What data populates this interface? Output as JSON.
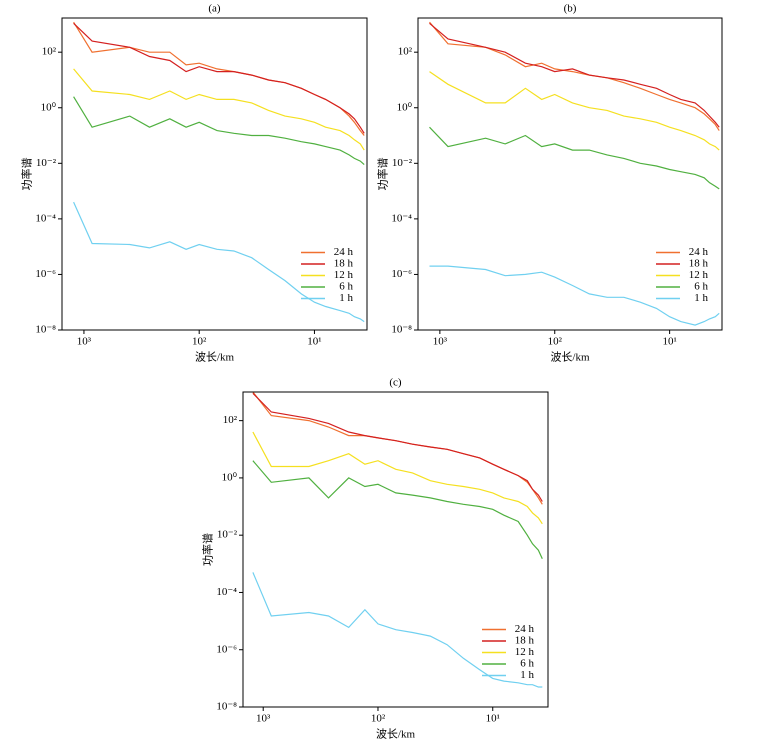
{
  "chart_data": [
    {
      "type": "line",
      "title": "(a)",
      "x_label": "波长/km",
      "y_label": "功率谱",
      "xscale": "log",
      "yscale": "log",
      "legend": "lower right",
      "x": [
        1230,
        850,
        400,
        270,
        180,
        130,
        100,
        70,
        50,
        35,
        25,
        18,
        13,
        10,
        8,
        6,
        5,
        4.5,
        4,
        3.7
      ],
      "xlim": [
        1550,
        3.5
      ],
      "ylim": [
        1e-08,
        1700
      ],
      "xticks": [
        {
          "value": 1000,
          "label": "10³"
        },
        {
          "value": 100,
          "label": "10²"
        },
        {
          "value": 10,
          "label": "10¹"
        }
      ],
      "yticks": [
        {
          "value": 1e-08,
          "label": "10⁻⁸"
        },
        {
          "value": 1e-06,
          "label": "10⁻⁶"
        },
        {
          "value": 0.0001,
          "label": "10⁻⁴"
        },
        {
          "value": 0.01,
          "label": "10⁻²"
        },
        {
          "value": 1,
          "label": "10⁰"
        },
        {
          "value": 100,
          "label": "10²"
        }
      ],
      "series": [
        {
          "name": "24 h",
          "color": "#f07030",
          "values": [
            1200,
            100,
            150,
            100,
            100,
            35,
            40,
            25,
            20,
            15,
            10,
            8,
            5,
            3,
            2,
            1,
            0.5,
            0.3,
            0.15,
            0.1
          ]
        },
        {
          "name": "18 h",
          "color": "#d42020",
          "values": [
            1100,
            250,
            150,
            70,
            50,
            20,
            30,
            20,
            20,
            15,
            10,
            8,
            5,
            3,
            2,
            1,
            0.6,
            0.4,
            0.2,
            0.12
          ]
        },
        {
          "name": "12 h",
          "color": "#f5e020",
          "values": [
            25,
            4,
            3,
            2,
            4,
            2,
            3,
            2,
            2,
            1.5,
            0.8,
            0.5,
            0.4,
            0.3,
            0.2,
            0.15,
            0.1,
            0.07,
            0.05,
            0.03
          ]
        },
        {
          "name": "6 h",
          "color": "#50b040",
          "values": [
            2.5,
            0.2,
            0.5,
            0.2,
            0.4,
            0.2,
            0.3,
            0.15,
            0.12,
            0.1,
            0.1,
            0.08,
            0.06,
            0.05,
            0.04,
            0.03,
            0.02,
            0.015,
            0.012,
            0.009
          ]
        },
        {
          "name": "1 h",
          "color": "#70d0f0",
          "values": [
            0.0004,
            1.3e-05,
            1.2e-05,
            9e-06,
            1.5e-05,
            8e-06,
            1.2e-05,
            8e-06,
            7e-06,
            4e-06,
            1.5e-06,
            6e-07,
            2e-07,
            1e-07,
            7e-08,
            5e-08,
            4e-08,
            3e-08,
            2.5e-08,
            2e-08
          ]
        }
      ]
    },
    {
      "type": "line",
      "title": "(b)",
      "x_label": "波长/km",
      "y_label": "功率谱",
      "xscale": "log",
      "yscale": "log",
      "legend": "lower right",
      "x": [
        1230,
        850,
        400,
        270,
        180,
        130,
        100,
        70,
        50,
        35,
        25,
        18,
        13,
        10,
        8,
        6,
        5,
        4.5,
        4,
        3.7
      ],
      "xlim": [
        1550,
        3.5
      ],
      "ylim": [
        1e-08,
        1700
      ],
      "xticks": [
        {
          "value": 1000,
          "label": "10³"
        },
        {
          "value": 100,
          "label": "10²"
        },
        {
          "value": 10,
          "label": "10¹"
        }
      ],
      "yticks": [
        {
          "value": 1e-08,
          "label": "10⁻⁸"
        },
        {
          "value": 1e-06,
          "label": "10⁻⁶"
        },
        {
          "value": 0.0001,
          "label": "10⁻⁴"
        },
        {
          "value": 0.01,
          "label": "10⁻²"
        },
        {
          "value": 1,
          "label": "10⁰"
        },
        {
          "value": 100,
          "label": "10²"
        }
      ],
      "series": [
        {
          "name": "24 h",
          "color": "#f07030",
          "values": [
            1200,
            200,
            150,
            80,
            30,
            40,
            25,
            20,
            15,
            12,
            8,
            5,
            3,
            2,
            1.5,
            1,
            0.6,
            0.4,
            0.25,
            0.15
          ]
        },
        {
          "name": "18 h",
          "color": "#d42020",
          "values": [
            1100,
            300,
            150,
            100,
            40,
            30,
            20,
            25,
            15,
            12,
            10,
            7,
            5,
            3,
            2,
            1.5,
            0.8,
            0.5,
            0.3,
            0.2
          ]
        },
        {
          "name": "12 h",
          "color": "#f5e020",
          "values": [
            20,
            7,
            1.5,
            1.5,
            5,
            2,
            3,
            1.5,
            1,
            0.8,
            0.5,
            0.4,
            0.3,
            0.2,
            0.15,
            0.1,
            0.07,
            0.05,
            0.04,
            0.03
          ]
        },
        {
          "name": "6 h",
          "color": "#50b040",
          "values": [
            0.2,
            0.04,
            0.08,
            0.05,
            0.1,
            0.04,
            0.05,
            0.03,
            0.03,
            0.02,
            0.015,
            0.01,
            0.008,
            0.006,
            0.005,
            0.004,
            0.003,
            0.002,
            0.0015,
            0.0012
          ]
        },
        {
          "name": "1 h",
          "color": "#70d0f0",
          "values": [
            2e-06,
            2e-06,
            1.5e-06,
            9e-07,
            1e-06,
            1.2e-06,
            8e-07,
            4e-07,
            2e-07,
            1.5e-07,
            1.5e-07,
            1e-07,
            6e-08,
            3e-08,
            2e-08,
            1.5e-08,
            2e-08,
            2.5e-08,
            3e-08,
            4e-08
          ]
        }
      ]
    },
    {
      "type": "line",
      "title": "(c)",
      "x_label": "波长/km",
      "y_label": "功率谱",
      "xscale": "log",
      "yscale": "log",
      "legend": "lower right",
      "x": [
        1230,
        850,
        400,
        270,
        180,
        130,
        100,
        70,
        50,
        35,
        25,
        18,
        13,
        10,
        8,
        6,
        5,
        4.5,
        4,
        3.7
      ],
      "xlim": [
        1500,
        3.3
      ],
      "ylim": [
        1e-08,
        1000
      ],
      "xticks": [
        {
          "value": 1000,
          "label": "10³"
        },
        {
          "value": 100,
          "label": "10²"
        },
        {
          "value": 10,
          "label": "10¹"
        }
      ],
      "yticks": [
        {
          "value": 1e-08,
          "label": "10⁻⁸"
        },
        {
          "value": 1e-06,
          "label": "10⁻⁶"
        },
        {
          "value": 0.0001,
          "label": "10⁻⁴"
        },
        {
          "value": 0.01,
          "label": "10⁻²"
        },
        {
          "value": 1,
          "label": "10⁰"
        },
        {
          "value": 100,
          "label": "10²"
        }
      ],
      "series": [
        {
          "name": "24 h",
          "color": "#f07030",
          "values": [
            1000,
            150,
            100,
            60,
            30,
            30,
            25,
            20,
            15,
            12,
            10,
            7,
            5,
            3,
            2,
            1.2,
            0.7,
            0.4,
            0.2,
            0.12
          ]
        },
        {
          "name": "18 h",
          "color": "#d42020",
          "values": [
            900,
            200,
            120,
            80,
            40,
            30,
            25,
            20,
            15,
            12,
            10,
            7,
            5,
            3,
            2,
            1.2,
            0.8,
            0.4,
            0.25,
            0.15
          ]
        },
        {
          "name": "12 h",
          "color": "#f5e020",
          "values": [
            40,
            2.5,
            2.5,
            4,
            7,
            3,
            4,
            2,
            1.5,
            0.8,
            0.6,
            0.5,
            0.4,
            0.3,
            0.2,
            0.15,
            0.1,
            0.06,
            0.04,
            0.025
          ]
        },
        {
          "name": "6 h",
          "color": "#50b040",
          "values": [
            4,
            0.7,
            1,
            0.2,
            1,
            0.5,
            0.6,
            0.3,
            0.25,
            0.2,
            0.15,
            0.12,
            0.1,
            0.08,
            0.05,
            0.03,
            0.01,
            0.005,
            0.003,
            0.0015
          ]
        },
        {
          "name": "1 h",
          "color": "#70d0f0",
          "values": [
            0.0005,
            1.5e-05,
            2e-05,
            1.5e-05,
            6e-06,
            2.5e-05,
            8e-06,
            5e-06,
            4e-06,
            3e-06,
            1.5e-06,
            5e-07,
            2e-07,
            1e-07,
            8e-08,
            7e-08,
            6e-08,
            6e-08,
            5e-08,
            5e-08
          ]
        }
      ]
    }
  ]
}
